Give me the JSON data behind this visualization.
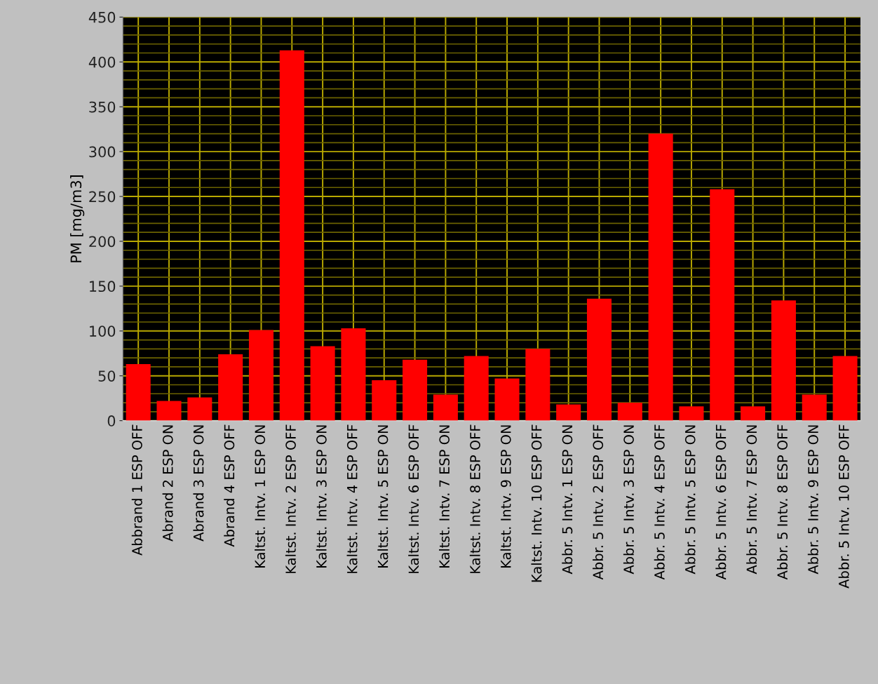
{
  "chart_data": {
    "type": "bar",
    "ylabel": "PM [mg/m3]",
    "categories": [
      "Abbrand 1 ESP OFF",
      "Abrand 2 ESP ON",
      "Abrand 3 ESP ON",
      "Abrand 4 ESP OFF",
      "Kaltst. Intv. 1 ESP ON",
      "Kaltst. Intv. 2 ESP OFF",
      "Kaltst. Intv. 3 ESP ON",
      "Kaltst. Intv. 4 ESP OFF",
      "Kaltst. Intv. 5 ESP ON",
      "Kaltst. Intv. 6 ESP OFF",
      "Kaltst. Intv. 7 ESP ON",
      "Kaltst. Intv. 8 ESP OFF",
      "Kaltst. Intv. 9 ESP ON",
      "Kaltst. Intv. 10 ESP OFF",
      "Abbr. 5 Intv. 1 ESP ON",
      "Abbr. 5 Intv. 2 ESP OFF",
      "Abbr. 5 Intv. 3 ESP ON",
      "Abbr. 5 Intv. 4 ESP OFF",
      "Abbr. 5 Intv. 5 ESP ON",
      "Abbr. 5 Intv. 6 ESP OFF",
      "Abbr. 5 Intv. 7 ESP ON",
      "Abbr. 5 Intv. 8 ESP OFF",
      "Abbr. 5 Intv. 9 ESP ON",
      "Abbr. 5 Intv. 10 ESP OFF"
    ],
    "values": [
      63,
      22,
      26,
      74,
      101,
      413,
      83,
      103,
      45,
      68,
      29,
      72,
      47,
      80,
      18,
      136,
      20,
      320,
      16,
      258,
      16,
      134,
      29,
      72
    ],
    "color": "#ff0000",
    "ylim": [
      0,
      450
    ],
    "yticks": [
      0,
      {
        "value": 10,
        "label": null
      },
      {
        "value": 20,
        "label": null
      },
      {
        "value": 30,
        "label": null
      },
      {
        "value": 40,
        "label": null
      },
      50,
      {
        "value": 60,
        "label": null
      },
      {
        "value": 70,
        "label": null
      },
      {
        "value": 80,
        "label": null
      },
      {
        "value": 90,
        "label": null
      },
      100,
      {
        "value": 110,
        "label": null
      },
      {
        "value": 120,
        "label": null
      },
      {
        "value": 130,
        "label": null
      },
      {
        "value": 140,
        "label": null
      },
      150,
      {
        "value": 160,
        "label": null
      },
      {
        "value": 170,
        "label": null
      },
      {
        "value": 180,
        "label": null
      },
      {
        "value": 190,
        "label": null
      },
      200,
      {
        "value": 210,
        "label": null
      },
      {
        "value": 220,
        "label": null
      },
      {
        "value": 230,
        "label": null
      },
      {
        "value": 240,
        "label": null
      },
      250,
      {
        "value": 260,
        "label": null
      },
      {
        "value": 270,
        "label": null
      },
      {
        "value": 280,
        "label": null
      },
      {
        "value": 290,
        "label": null
      },
      300,
      {
        "value": 310,
        "label": null
      },
      {
        "value": 320,
        "label": null
      },
      {
        "value": 330,
        "label": null
      },
      {
        "value": 340,
        "label": null
      },
      350,
      {
        "value": 360,
        "label": null
      },
      {
        "value": 370,
        "label": null
      },
      {
        "value": 380,
        "label": null
      },
      {
        "value": 390,
        "label": null
      },
      400,
      {
        "value": 410,
        "label": null
      },
      {
        "value": 420,
        "label": null
      },
      {
        "value": 430,
        "label": null
      },
      {
        "value": 440,
        "label": null
      },
      450
    ],
    "grid": true
  }
}
